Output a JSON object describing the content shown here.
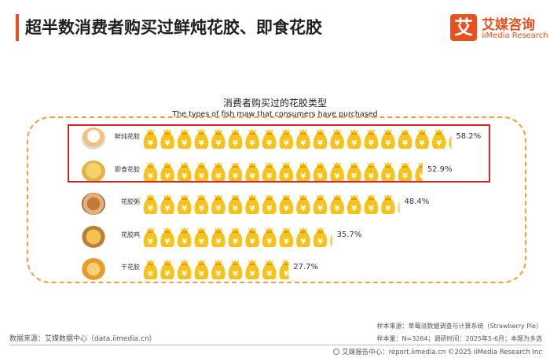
{
  "header": {
    "title": "超半数消费者购买过鲜炖花胶、即食花胶",
    "logo_mark": "艾",
    "logo_cn": "艾媒咨询",
    "logo_en": "iiMedia Research"
  },
  "chart_data": {
    "type": "bar",
    "title": "消费者购买过的花胶类型",
    "subtitle": "The types of fish maw that consumers have purchased",
    "categories": [
      "鲜炖花胶",
      "即食花胶",
      "花胶粥",
      "花胶鸡",
      "干花胶"
    ],
    "values": [
      58.2,
      52.9,
      48.4,
      35.7,
      27.7
    ],
    "value_labels": [
      "58.2%",
      "52.9%",
      "48.4%",
      "35.7%",
      "27.7%"
    ],
    "unit": "%",
    "bar_style": "money-bag icons",
    "highlighted_categories": [
      "鲜炖花胶",
      "即食花胶"
    ],
    "colors": {
      "bag": "#f6c21b",
      "bag_tie": "#d99a00",
      "highlight_border": "#d9252a",
      "frame": "#f0a040"
    },
    "category_icons": [
      "fresh-stewed-fish-maw-jar-icon",
      "instant-fish-maw-cup-icon",
      "fish-maw-porridge-icon",
      "fish-maw-chicken-soup-icon",
      "dried-fish-maw-icon"
    ]
  },
  "source": {
    "left": "数据来源：艾媒数据中心（data.iimedia.cn）",
    "right_line1": "样本来源：草莓派数据调查与计算系统（Strawberry Pie）",
    "right_line2": "样本量：N=3264；调研时间：2025年5-6月；本题为多选"
  },
  "footer": {
    "text": "艾媒报告中心：report.iimedia.cn    ©2025  iiMedia Research  Inc"
  }
}
